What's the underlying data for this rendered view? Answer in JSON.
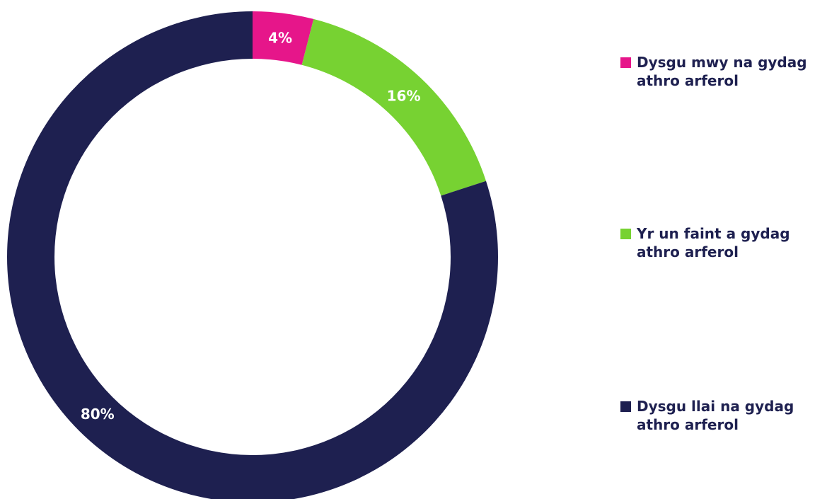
{
  "chart_data": {
    "type": "pie",
    "style": "donut",
    "title": "",
    "slices": [
      {
        "label": "Dysgu mwy na gydag athro arferol",
        "value": 4,
        "display": "4%",
        "color": "#e6168a"
      },
      {
        "label": "Yr un faint a gydag athro arferol",
        "value": 16,
        "display": "16%",
        "color": "#77d232"
      },
      {
        "label": "Dysgu llai na gydag athro arferol",
        "value": 80,
        "display": "80%",
        "color": "#1e2050"
      }
    ],
    "legend_position": "right"
  },
  "legend": {
    "items": [
      {
        "label": "Dysgu mwy na gydag athro arferol",
        "color": "#e6168a"
      },
      {
        "label": "Yr un faint a gydag athro arferol",
        "color": "#77d232"
      },
      {
        "label": "Dysgu llai na gydag athro arferol",
        "color": "#1e2050"
      }
    ]
  }
}
